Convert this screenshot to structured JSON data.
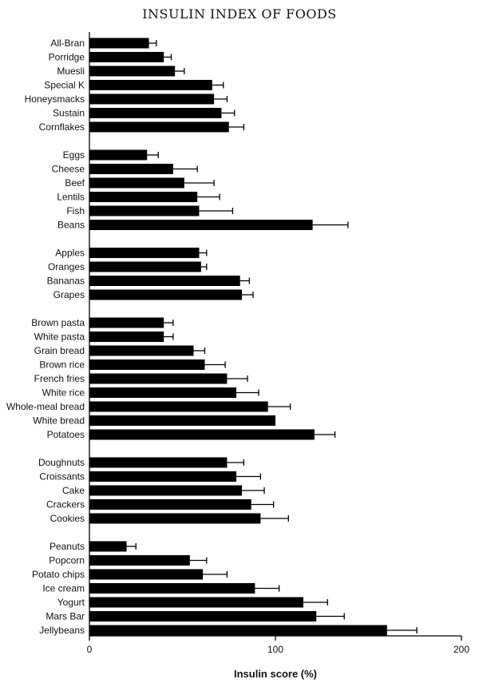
{
  "chart_data": {
    "type": "bar",
    "orientation": "horizontal",
    "title": "INSULIN INDEX OF FOODS",
    "xlabel": "Insulin score (%)",
    "xlim": [
      0,
      200
    ],
    "xticks": [
      0,
      100,
      200
    ],
    "error_bars": true,
    "bar_color": "#000000",
    "groups": [
      {
        "categories": [
          "All-Bran",
          "Porridge",
          "Muesli",
          "Special K",
          "Honeysmacks",
          "Sustain",
          "Cornflakes"
        ],
        "values": [
          32,
          40,
          46,
          66,
          67,
          71,
          75
        ],
        "errors": [
          4,
          4,
          5,
          6,
          7,
          7,
          8
        ]
      },
      {
        "categories": [
          "Eggs",
          "Cheese",
          "Beef",
          "Lentils",
          "Fish",
          "Beans"
        ],
        "values": [
          31,
          45,
          51,
          58,
          59,
          120
        ],
        "errors": [
          6,
          13,
          16,
          12,
          18,
          19
        ]
      },
      {
        "categories": [
          "Apples",
          "Oranges",
          "Bananas",
          "Grapes"
        ],
        "values": [
          59,
          60,
          81,
          82
        ],
        "errors": [
          4,
          3,
          5,
          6
        ]
      },
      {
        "categories": [
          "Brown pasta",
          "White pasta",
          "Grain bread",
          "Brown rice",
          "French fries",
          "White rice",
          "Whole-meal bread",
          "White bread",
          "Potatoes"
        ],
        "values": [
          40,
          40,
          56,
          62,
          74,
          79,
          96,
          100,
          121
        ],
        "errors": [
          5,
          5,
          6,
          11,
          11,
          12,
          12,
          0,
          11
        ]
      },
      {
        "categories": [
          "Doughnuts",
          "Croissants",
          "Cake",
          "Crackers",
          "Cookies"
        ],
        "values": [
          74,
          79,
          82,
          87,
          92
        ],
        "errors": [
          9,
          13,
          12,
          12,
          15
        ]
      },
      {
        "categories": [
          "Peanuts",
          "Popcorn",
          "Potato chips",
          "Ice cream",
          "Yogurt",
          "Mars Bar",
          "Jellybeans"
        ],
        "values": [
          20,
          54,
          61,
          89,
          115,
          122,
          160
        ],
        "errors": [
          5,
          9,
          13,
          13,
          13,
          15,
          16
        ]
      }
    ]
  }
}
